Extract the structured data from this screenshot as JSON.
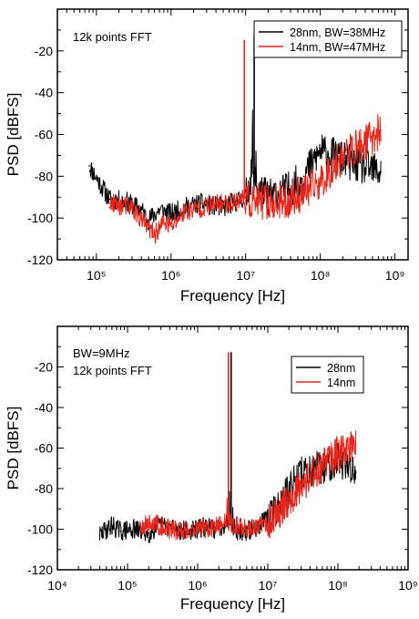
{
  "chart_data": [
    {
      "type": "line",
      "title": "",
      "xlabel": "Frequency [Hz]",
      "ylabel": "PSD [dBFS]",
      "x_scale": "log",
      "xlim": [
        30000,
        1500000000
      ],
      "ylim": [
        -120,
        0
      ],
      "x_ticks": [
        "10^5",
        "10^6",
        "10^7",
        "10^8",
        "10^9"
      ],
      "x_tick_values": [
        100000,
        1000000,
        10000000,
        100000000,
        1000000000
      ],
      "y_ticks": [
        "-20",
        "-40",
        "-60",
        "-80",
        "-100",
        "-120"
      ],
      "y_tick_values": [
        -20,
        -40,
        -60,
        -80,
        -100,
        -120
      ],
      "annotation": "12k points FFT",
      "legend_position": "top-right",
      "series": [
        {
          "name": "28nm, BW=38MHz",
          "color": "#000000",
          "x": [
            80000,
            150000,
            250000,
            400000,
            500000,
            700000,
            1000000,
            1500000,
            2500000,
            5000000,
            10000000,
            12000000,
            13000000,
            14000000,
            20000000,
            40000000,
            60000000,
            100000000,
            200000000,
            400000000,
            650000000
          ],
          "y": [
            -75,
            -91,
            -92,
            -96,
            -101,
            -96,
            -98,
            -95,
            -93,
            -95,
            -90,
            -80,
            -13,
            -85,
            -90,
            -86,
            -80,
            -68,
            -72,
            -76,
            -78
          ]
        },
        {
          "name": "14nm, BW=47MHz",
          "color": "#e8251a",
          "x": [
            150000,
            300000,
            450000,
            600000,
            800000,
            1000000,
            1500000,
            2500000,
            5000000,
            8000000,
            9200000,
            9600000,
            10000000,
            15000000,
            30000000,
            60000000,
            100000000,
            200000000,
            400000000,
            650000000
          ],
          "y": [
            -93,
            -95,
            -103,
            -108,
            -102,
            -104,
            -97,
            -95,
            -93,
            -92,
            -90,
            -15,
            -92,
            -92,
            -93,
            -88,
            -83,
            -70,
            -64,
            -58
          ]
        }
      ]
    },
    {
      "type": "line",
      "title": "",
      "xlabel": "Frequency [Hz]",
      "ylabel": "PSD [dBFS]",
      "x_scale": "log",
      "xlim": [
        10000,
        1000000000
      ],
      "ylim": [
        -120,
        0
      ],
      "x_ticks": [
        "10^4",
        "10^5",
        "10^6",
        "10^7",
        "10^8",
        "10^9"
      ],
      "x_tick_values": [
        10000,
        100000,
        1000000,
        10000000,
        100000000,
        1000000000
      ],
      "y_ticks": [
        "-20",
        "-40",
        "-60",
        "-80",
        "-100",
        "-120"
      ],
      "y_tick_values": [
        -20,
        -40,
        -60,
        -80,
        -100,
        -120
      ],
      "annotations": [
        "BW=9MHz",
        "12k points FFT"
      ],
      "legend_position": "top-right",
      "series": [
        {
          "name": "28nm",
          "color": "#000000",
          "x": [
            40000,
            60000,
            80000,
            120000,
            200000,
            300000,
            500000,
            800000,
            1200000,
            2000000,
            2800000,
            3000000,
            3200000,
            4000000,
            6000000,
            10000000,
            15000000,
            30000000,
            60000000,
            100000000,
            180000000
          ],
          "y": [
            -103,
            -98,
            -101,
            -100,
            -102,
            -98,
            -100,
            -101,
            -99,
            -100,
            -95,
            -13,
            -98,
            -102,
            -100,
            -95,
            -87,
            -72,
            -70,
            -65,
            -72
          ]
        },
        {
          "name": "14nm",
          "color": "#e8251a",
          "x": [
            150000,
            250000,
            400000,
            600000,
            1000000,
            1500000,
            2200000,
            2600000,
            2750000,
            2900000,
            4000000,
            6000000,
            10000000,
            15000000,
            30000000,
            60000000,
            100000000,
            180000000
          ],
          "y": [
            -98,
            -97,
            -100,
            -101,
            -99,
            -100,
            -98,
            -95,
            -13,
            -97,
            -99,
            -100,
            -97,
            -90,
            -78,
            -68,
            -63,
            -58
          ]
        }
      ]
    }
  ]
}
